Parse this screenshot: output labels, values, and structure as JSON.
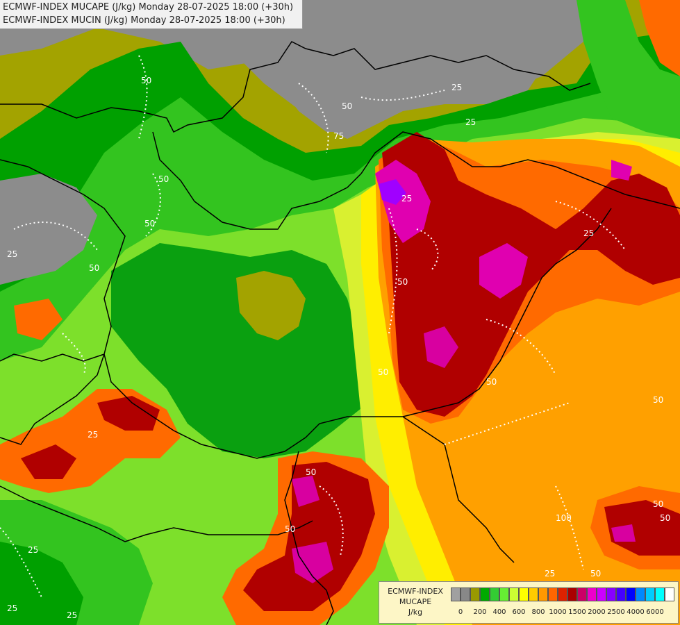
{
  "title_lines": [
    "ECMWF-INDEX MUCAPE (J/kg) Monday 28-07-2025 18:00 (+30h)",
    "ECMWF-INDEX MUCIN (J/kg) Monday 28-07-2025 18:00 (+30h)"
  ],
  "legend": {
    "line1": "ECMWF-INDEX",
    "line2": "MUCAPE",
    "line3": "J/kg",
    "colors": [
      "#a0a0a0",
      "#888888",
      "#999900",
      "#00aa00",
      "#33cc33",
      "#66ee33",
      "#ccff33",
      "#ffff00",
      "#ffcc00",
      "#ff9900",
      "#ff6600",
      "#dd2200",
      "#aa0000",
      "#cc0066",
      "#ee00cc",
      "#cc00ff",
      "#8800ff",
      "#4400ff",
      "#0000ff",
      "#0088ff",
      "#00ccff",
      "#00ffff",
      "#ffffff"
    ],
    "tick_labels": [
      "0",
      "200",
      "400",
      "600",
      "800",
      "1000",
      "1500",
      "2000",
      "2500",
      "4000",
      "6000"
    ]
  },
  "contour_labels": [
    "50",
    "50",
    "25",
    "75",
    "50",
    "50",
    "25",
    "50",
    "25",
    "50",
    "25",
    "25",
    "50",
    "50",
    "25",
    "50",
    "50",
    "25",
    "50",
    "25",
    "50",
    "50",
    "100",
    "25",
    "50",
    "25"
  ]
}
